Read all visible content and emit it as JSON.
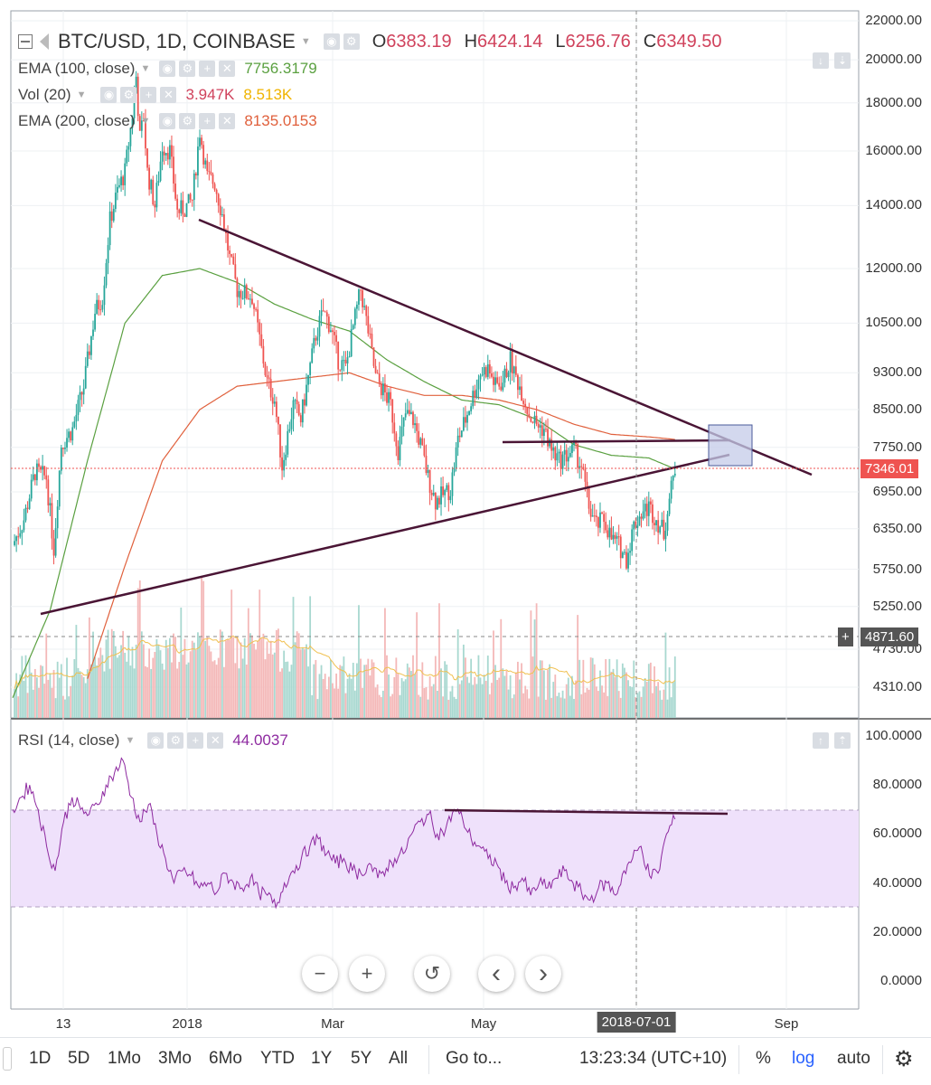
{
  "header": {
    "symbol": "BTC/USD, 1D, COINBASE",
    "open_label": "O",
    "open": "6383.19",
    "high_label": "H",
    "high": "6424.14",
    "low_label": "L",
    "low": "6256.76",
    "close_label": "C",
    "close": "6349.50"
  },
  "indicators": [
    {
      "label": "EMA (100, close)",
      "value": "7756.3179",
      "color": "#5aa040"
    },
    {
      "label": "Vol (20)",
      "value": "3.947K",
      "value2": "8.513K",
      "color": "#d0425c",
      "color2": "#f0b400"
    },
    {
      "label": "EMA (200, close)",
      "value": "8135.0153",
      "color": "#e0603c"
    }
  ],
  "rsi": {
    "label": "RSI (14, close)",
    "value": "44.0037",
    "color": "#8e2aa0"
  },
  "price_axis": [
    "22000.00",
    "20000.00",
    "18000.00",
    "16000.00",
    "14000.00",
    "12000.00",
    "10500.00",
    "9300.00",
    "8500.00",
    "7750.00",
    "6950.00",
    "6350.00",
    "5750.00",
    "5250.00",
    "4730.00",
    "4310.00"
  ],
  "price_axis_tags": {
    "last_price": "7346.01",
    "crosshair": "4871.60",
    "plus": "+"
  },
  "rsi_axis": [
    "100.0000",
    "80.0000",
    "60.0000",
    "40.0000",
    "20.0000",
    "0.0000"
  ],
  "time_axis": [
    "13",
    "2018",
    "Mar",
    "May",
    "Sep"
  ],
  "crosshair_date": "2018-07-01",
  "zoom_controls": {
    "minus": "−",
    "plus": "+",
    "reset": "↺",
    "left": "‹",
    "right": "›"
  },
  "bottom_bar": {
    "ranges": [
      "1D",
      "5D",
      "1Mo",
      "3Mo",
      "6Mo",
      "YTD",
      "1Y",
      "5Y",
      "All"
    ],
    "goto": "Go to...",
    "time": "13:23:34 (UTC+10)",
    "percent": "%",
    "log": "log",
    "auto": "auto"
  },
  "colors": {
    "up": "#26a69a",
    "down": "#ef5350",
    "trendline": "#4a1535",
    "rsi_band": "#efe1fb",
    "rsi_line": "#8e2aa0",
    "ema100": "#5aa040",
    "ema200": "#e0603c",
    "vol_ma": "#f0c050",
    "last_price_tag": "#ef5350",
    "crosshair_tag": "#555555"
  },
  "chart_data": {
    "type": "candlestick",
    "title": "BTC/USD, 1D, COINBASE",
    "price_scale": "log",
    "ylim": [
      4100,
      22000
    ],
    "x_range": [
      "2017-11-24",
      "2018-09-20"
    ],
    "close_path": [
      [
        0,
        6100
      ],
      [
        6,
        6500
      ],
      [
        12,
        7300
      ],
      [
        18,
        7200
      ],
      [
        22,
        6050
      ],
      [
        26,
        7800
      ],
      [
        32,
        8100
      ],
      [
        38,
        9000
      ],
      [
        44,
        10800
      ],
      [
        48,
        11200
      ],
      [
        52,
        13500
      ],
      [
        56,
        14500
      ],
      [
        60,
        15200
      ],
      [
        64,
        17500
      ],
      [
        66,
        19200
      ],
      [
        68,
        16500
      ],
      [
        70,
        17400
      ],
      [
        72,
        15200
      ],
      [
        76,
        14000
      ],
      [
        80,
        16200
      ],
      [
        84,
        16000
      ],
      [
        88,
        13800
      ],
      [
        92,
        13900
      ],
      [
        96,
        14200
      ],
      [
        100,
        16800
      ],
      [
        104,
        15000
      ],
      [
        108,
        14800
      ],
      [
        112,
        13700
      ],
      [
        116,
        12300
      ],
      [
        120,
        11400
      ],
      [
        124,
        11300
      ],
      [
        128,
        11200
      ],
      [
        132,
        10100
      ],
      [
        136,
        9100
      ],
      [
        140,
        8700
      ],
      [
        144,
        7400
      ],
      [
        148,
        8200
      ],
      [
        150,
        8600
      ],
      [
        154,
        8300
      ],
      [
        158,
        9200
      ],
      [
        162,
        10200
      ],
      [
        166,
        10800
      ],
      [
        170,
        10400
      ],
      [
        174,
        9600
      ],
      [
        178,
        9400
      ],
      [
        182,
        10400
      ],
      [
        186,
        11400
      ],
      [
        190,
        10300
      ],
      [
        194,
        9200
      ],
      [
        198,
        8900
      ],
      [
        202,
        8600
      ],
      [
        206,
        7700
      ],
      [
        210,
        8400
      ],
      [
        214,
        8300
      ],
      [
        218,
        7800
      ],
      [
        222,
        7200
      ],
      [
        226,
        6800
      ],
      [
        230,
        6900
      ],
      [
        234,
        7000
      ],
      [
        238,
        7900
      ],
      [
        242,
        8300
      ],
      [
        246,
        8800
      ],
      [
        250,
        9300
      ],
      [
        254,
        9400
      ],
      [
        258,
        9000
      ],
      [
        262,
        9100
      ],
      [
        266,
        9600
      ],
      [
        268,
        9300
      ],
      [
        272,
        8900
      ],
      [
        276,
        8400
      ],
      [
        280,
        8200
      ],
      [
        284,
        8100
      ],
      [
        288,
        7700
      ],
      [
        292,
        7500
      ],
      [
        296,
        7600
      ],
      [
        300,
        7700
      ],
      [
        304,
        7400
      ],
      [
        308,
        6700
      ],
      [
        312,
        6400
      ],
      [
        316,
        6500
      ],
      [
        320,
        6200
      ],
      [
        324,
        6100
      ],
      [
        328,
        5900
      ],
      [
        332,
        6400
      ],
      [
        336,
        6600
      ],
      [
        340,
        6700
      ],
      [
        344,
        6500
      ],
      [
        348,
        6300
      ],
      [
        352,
        7000
      ],
      [
        354,
        7350
      ]
    ],
    "ema100_path": [
      [
        0,
        4200
      ],
      [
        20,
        5200
      ],
      [
        40,
        7500
      ],
      [
        60,
        10500
      ],
      [
        80,
        11800
      ],
      [
        100,
        12000
      ],
      [
        120,
        11600
      ],
      [
        140,
        11000
      ],
      [
        160,
        10600
      ],
      [
        180,
        10300
      ],
      [
        200,
        9600
      ],
      [
        220,
        9100
      ],
      [
        240,
        8700
      ],
      [
        260,
        8600
      ],
      [
        280,
        8300
      ],
      [
        300,
        7800
      ],
      [
        320,
        7600
      ],
      [
        340,
        7550
      ],
      [
        354,
        7350
      ]
    ],
    "ema200_path": [
      [
        40,
        4400
      ],
      [
        60,
        5800
      ],
      [
        80,
        7500
      ],
      [
        100,
        8500
      ],
      [
        120,
        9000
      ],
      [
        140,
        9100
      ],
      [
        160,
        9200
      ],
      [
        180,
        9300
      ],
      [
        200,
        9000
      ],
      [
        220,
        8800
      ],
      [
        240,
        8800
      ],
      [
        260,
        8700
      ],
      [
        280,
        8500
      ],
      [
        300,
        8200
      ],
      [
        320,
        8000
      ],
      [
        340,
        7950
      ],
      [
        354,
        7900
      ]
    ],
    "rsi_values": [
      70,
      75,
      80,
      70,
      55,
      45,
      65,
      75,
      70,
      68,
      72,
      80,
      85,
      90,
      75,
      65,
      72,
      60,
      50,
      40,
      45,
      43,
      38,
      40,
      36,
      44,
      40,
      38,
      42,
      36,
      35,
      30,
      40,
      45,
      50,
      55,
      58,
      52,
      48,
      50,
      45,
      44,
      48,
      42,
      46,
      50,
      52,
      60,
      65,
      68,
      60,
      62,
      70,
      66,
      58,
      55,
      50,
      48,
      40,
      38,
      42,
      35,
      40,
      38,
      42,
      45,
      40,
      36,
      33,
      38,
      40,
      35,
      45,
      50,
      55,
      43,
      44,
      60,
      66
    ]
  }
}
